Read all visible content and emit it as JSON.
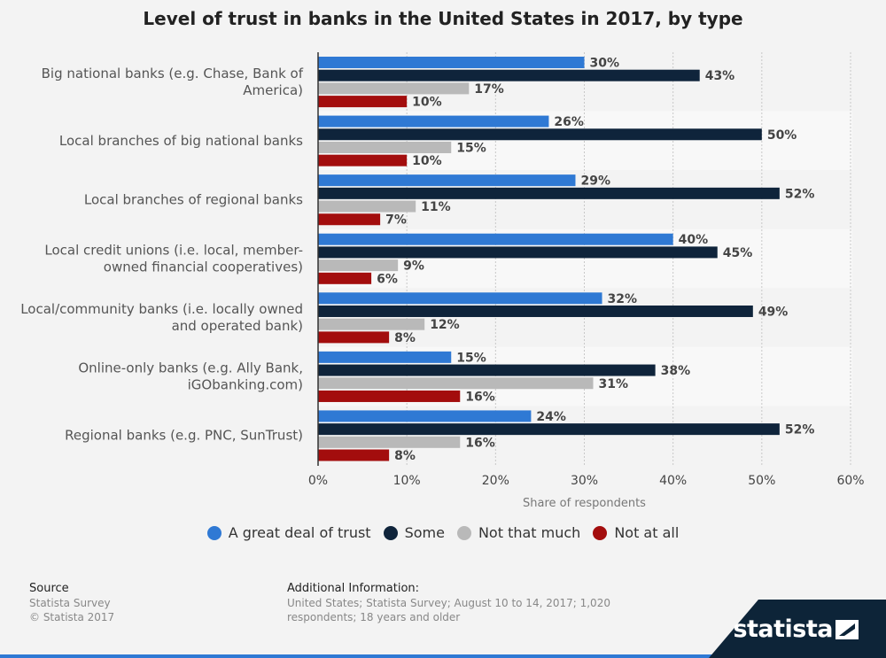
{
  "title": "Level of trust in banks in the United States in 2017, by type",
  "chart_data": {
    "type": "bar",
    "orientation": "horizontal",
    "title": "Level of trust in banks in the United States in 2017, by type",
    "xlabel": "Share of respondents",
    "ylabel": "",
    "xlim": [
      0,
      60
    ],
    "x_ticks": [
      "0%",
      "10%",
      "20%",
      "30%",
      "40%",
      "50%",
      "60%"
    ],
    "categories": [
      [
        "Big national banks (e.g. Chase, Bank of",
        "America)"
      ],
      [
        "Local branches of big national banks"
      ],
      [
        "Local branches of regional banks"
      ],
      [
        "Local credit unions (i.e. local, member-",
        "owned financial cooperatives)"
      ],
      [
        "Local/community banks (i.e. locally owned",
        "and operated bank)"
      ],
      [
        "Online-only banks (e.g. Ally Bank,",
        "iGObanking.com)"
      ],
      [
        "Regional banks (e.g. PNC, SunTrust)"
      ]
    ],
    "series": [
      {
        "name": "A great deal of trust",
        "color": "#2f79d4",
        "values": [
          30,
          26,
          29,
          40,
          32,
          15,
          24
        ]
      },
      {
        "name": "Some",
        "color": "#0f243b",
        "values": [
          43,
          50,
          52,
          45,
          49,
          38,
          52
        ]
      },
      {
        "name": "Not that much",
        "color": "#b9b9b9",
        "values": [
          17,
          15,
          11,
          9,
          12,
          31,
          16
        ]
      },
      {
        "name": "Not at all",
        "color": "#a30d0d",
        "values": [
          10,
          10,
          7,
          6,
          8,
          16,
          8
        ]
      }
    ],
    "value_suffix": "%",
    "grid": true,
    "legend_position": "bottom"
  },
  "source": {
    "heading": "Source",
    "line1": "Statista Survey",
    "line2": "© Statista 2017"
  },
  "additional_info": {
    "heading": "Additional Information:",
    "text": "United States; Statista Survey; August 10 to 14, 2017; 1,020 respondents; 18 years and older"
  },
  "logo": {
    "text": "statista",
    "icon": "statista-logo-mark-icon"
  }
}
